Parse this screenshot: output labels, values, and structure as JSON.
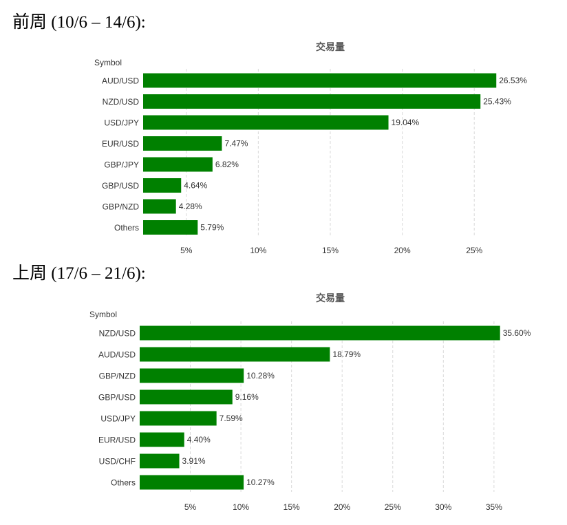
{
  "headings": {
    "first": "前周 (10/6 – 14/6):",
    "second": "上周 (17/6 – 21/6):"
  },
  "colors": {
    "bar": "#008000",
    "grid": "#d9d9d9",
    "text": "#333333",
    "title": "#555555"
  },
  "chart_data": [
    {
      "type": "bar",
      "orientation": "horizontal",
      "title": "交易量",
      "ylabel": "Symbol",
      "xlim": [
        2,
        28
      ],
      "xticks": [
        5,
        10,
        15,
        20,
        25
      ],
      "xtick_labels": [
        "5%",
        "10%",
        "15%",
        "20%",
        "25%"
      ],
      "grid": true,
      "categories": [
        "AUD/USD",
        "NZD/USD",
        "USD/JPY",
        "EUR/USD",
        "GBP/JPY",
        "GBP/USD",
        "GBP/NZD",
        "Others"
      ],
      "values": [
        26.53,
        25.43,
        19.04,
        7.47,
        6.82,
        4.64,
        4.28,
        5.79
      ],
      "labels": [
        "26.53%",
        "25.43%",
        "19.04%",
        "7.47%",
        "6.82%",
        "4.64%",
        "4.28%",
        "5.79%"
      ]
    },
    {
      "type": "bar",
      "orientation": "horizontal",
      "title": "交易量",
      "ylabel": "Symbol",
      "xlim": [
        0,
        38
      ],
      "xticks": [
        5,
        10,
        15,
        20,
        25,
        30,
        35
      ],
      "xtick_labels": [
        "5%",
        "10%",
        "15%",
        "20%",
        "25%",
        "30%",
        "35%"
      ],
      "grid": true,
      "categories": [
        "NZD/USD",
        "AUD/USD",
        "GBP/NZD",
        "GBP/USD",
        "USD/JPY",
        "EUR/USD",
        "USD/CHF",
        "Others"
      ],
      "values": [
        35.6,
        18.79,
        10.28,
        9.16,
        7.59,
        4.4,
        3.91,
        10.27
      ],
      "labels": [
        "35.60%",
        "18.79%",
        "10.28%",
        "9.16%",
        "7.59%",
        "4.40%",
        "3.91%",
        "10.27%"
      ]
    }
  ]
}
